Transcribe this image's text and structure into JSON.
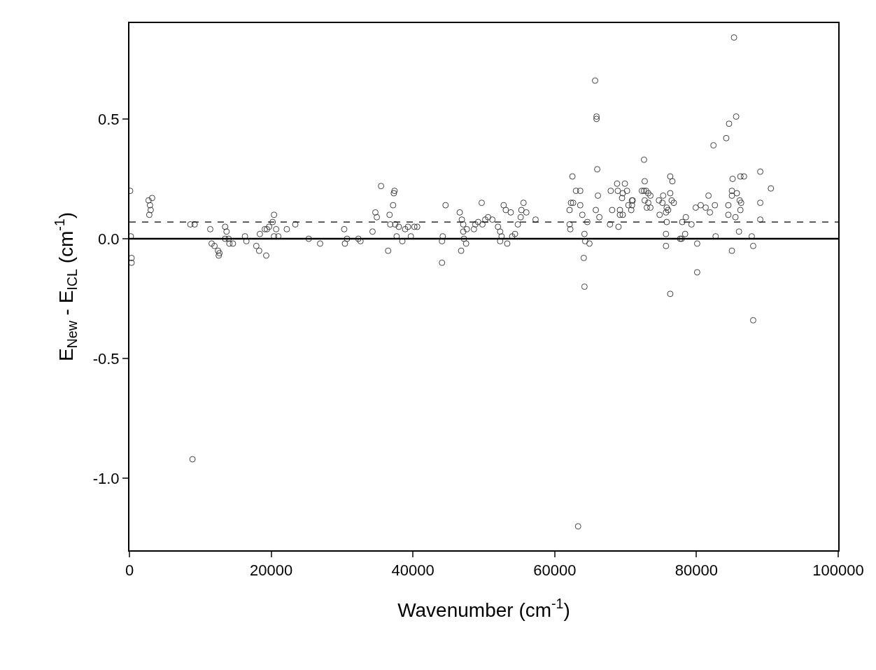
{
  "chart_data": {
    "type": "scatter",
    "xlabel": "Wavenumber (cm$^{-1}$)",
    "ylabel": "E$_{New}$ - E$_{ICL}$ (cm$^{-1}$)",
    "x": [
      100,
      200,
      300,
      300,
      2700,
      3200,
      2900,
      3000,
      2800,
      8600,
      9200,
      8900,
      11400,
      11600,
      12000,
      12500,
      12600,
      12700,
      13500,
      13700,
      13500,
      14100,
      14600,
      14000,
      16300,
      16500,
      17900,
      18300,
      19300,
      18400,
      19100,
      19700,
      19400,
      20200,
      20400,
      20700,
      20400,
      21000,
      22200,
      23400,
      25300,
      26900,
      30300,
      30400,
      30700,
      32300,
      32600,
      34300,
      34700,
      34900,
      35500,
      36500,
      36700,
      37200,
      37300,
      37400,
      36800,
      37500,
      37700,
      38000,
      38500,
      38900,
      39300,
      39700,
      40200,
      40600,
      44100,
      44200,
      44100,
      44600,
      46600,
      46800,
      46900,
      47100,
      47100,
      47200,
      47500,
      47600,
      48600,
      48800,
      49200,
      49700,
      49800,
      50200,
      50600,
      51200,
      52000,
      52300,
      52500,
      52300,
      52800,
      53100,
      53300,
      53800,
      54000,
      54400,
      54800,
      55200,
      55300,
      55600,
      56000,
      57300,
      62100,
      62200,
      62300,
      62500,
      63000,
      63600,
      62600,
      62100,
      63600,
      63900,
      64600,
      64200,
      64300,
      64900,
      64100,
      64200,
      63300,
      66100,
      65800,
      66300,
      67800,
      68100,
      67900,
      68800,
      69900,
      68900,
      69600,
      70200,
      69500,
      70900,
      70400,
      70800,
      69200,
      69200,
      69600,
      69000,
      72300,
      65900,
      65900,
      65700,
      66000,
      72600,
      85300,
      85600,
      84600,
      84200,
      82400,
      72700,
      72600,
      72900,
      73200,
      73500,
      72700,
      73200,
      73000,
      73500,
      71000,
      70900,
      76300,
      76600,
      76300,
      75300,
      74700,
      75200,
      76500,
      76800,
      75800,
      75700,
      76000,
      74800,
      75800,
      75700,
      75700,
      77700,
      77900,
      78400,
      78000,
      78500,
      79300,
      80100,
      79900,
      80600,
      81300,
      81700,
      81900,
      82600,
      82700,
      84500,
      84500,
      85000,
      85100,
      85000,
      85700,
      85500,
      86100,
      86300,
      86200,
      86000,
      86200,
      86700,
      85000,
      89000,
      90500,
      89000,
      89000,
      87800,
      88000,
      80100,
      76300,
      88000
    ],
    "values": [
      0.2,
      0.01,
      -0.08,
      -0.1,
      0.16,
      0.17,
      0.14,
      0.12,
      0.1,
      0.06,
      0.06,
      -0.92,
      0.04,
      -0.02,
      -0.03,
      -0.05,
      -0.07,
      -0.06,
      0.05,
      0.03,
      0.0,
      -0.02,
      -0.02,
      0.0,
      0.01,
      -0.01,
      -0.03,
      -0.05,
      -0.07,
      0.02,
      0.04,
      0.05,
      0.04,
      0.07,
      0.1,
      0.04,
      0.01,
      0.01,
      0.04,
      0.06,
      0.0,
      -0.02,
      0.04,
      -0.02,
      0.0,
      0.0,
      -0.01,
      0.03,
      0.11,
      0.09,
      0.22,
      -0.05,
      0.1,
      0.14,
      0.19,
      0.2,
      0.06,
      0.06,
      0.01,
      0.05,
      -0.01,
      0.04,
      0.05,
      0.01,
      0.05,
      0.05,
      -0.1,
      0.01,
      -0.01,
      0.14,
      0.11,
      -0.05,
      0.08,
      0.06,
      0.03,
      0.0,
      -0.02,
      0.04,
      0.04,
      0.06,
      0.07,
      0.15,
      0.06,
      0.08,
      0.09,
      0.08,
      0.05,
      0.03,
      0.01,
      -0.01,
      0.14,
      0.12,
      -0.02,
      0.11,
      0.01,
      0.02,
      0.06,
      0.09,
      0.12,
      0.15,
      0.11,
      0.08,
      0.06,
      0.04,
      0.15,
      0.26,
      0.2,
      0.2,
      0.15,
      0.12,
      0.14,
      0.1,
      0.07,
      0.02,
      -0.01,
      -0.02,
      -0.08,
      -0.2,
      -1.2,
      0.18,
      0.12,
      0.09,
      0.06,
      0.12,
      0.2,
      0.23,
      0.23,
      0.2,
      0.19,
      0.2,
      0.17,
      0.16,
      0.14,
      0.12,
      0.12,
      0.1,
      0.1,
      0.05,
      0.2,
      0.5,
      0.51,
      0.66,
      0.29,
      0.33,
      0.84,
      0.51,
      0.48,
      0.42,
      0.39,
      0.24,
      0.2,
      0.2,
      0.19,
      0.18,
      0.16,
      0.15,
      0.13,
      0.13,
      0.16,
      0.14,
      0.26,
      0.24,
      0.19,
      0.18,
      0.16,
      0.15,
      0.16,
      0.15,
      0.13,
      0.11,
      0.12,
      0.1,
      0.07,
      0.02,
      -0.03,
      0.0,
      0.0,
      0.02,
      0.07,
      0.09,
      0.06,
      -0.02,
      0.13,
      0.14,
      0.13,
      0.18,
      0.11,
      0.14,
      0.01,
      0.14,
      0.1,
      0.2,
      0.25,
      0.18,
      0.19,
      0.09,
      0.16,
      0.15,
      0.12,
      0.03,
      0.26,
      0.26,
      -0.05,
      0.28,
      0.21,
      0.15,
      0.08,
      0.01,
      -0.03,
      -0.14,
      -0.23,
      -0.34
    ],
    "color": "#404040",
    "marker": "circle",
    "xlim": [
      0,
      100000
    ],
    "xticks": [
      0,
      20000,
      40000,
      60000,
      80000,
      100000
    ],
    "ylim": [
      -1.3,
      0.9
    ],
    "yticks": [
      {
        "value": -1.0,
        "label": "-1.0"
      },
      {
        "value": -0.5,
        "label": "-0.5"
      },
      {
        "value": 0.0,
        "label": "0.0"
      },
      {
        "value": 0.5,
        "label": "0.5"
      }
    ],
    "ref_lines": [
      {
        "axis": "y",
        "value": 0,
        "line_style": "solid",
        "color": "#000000"
      },
      {
        "axis": "y",
        "value": 0.07,
        "line_style": "dashed",
        "color": "#000000"
      }
    ]
  }
}
